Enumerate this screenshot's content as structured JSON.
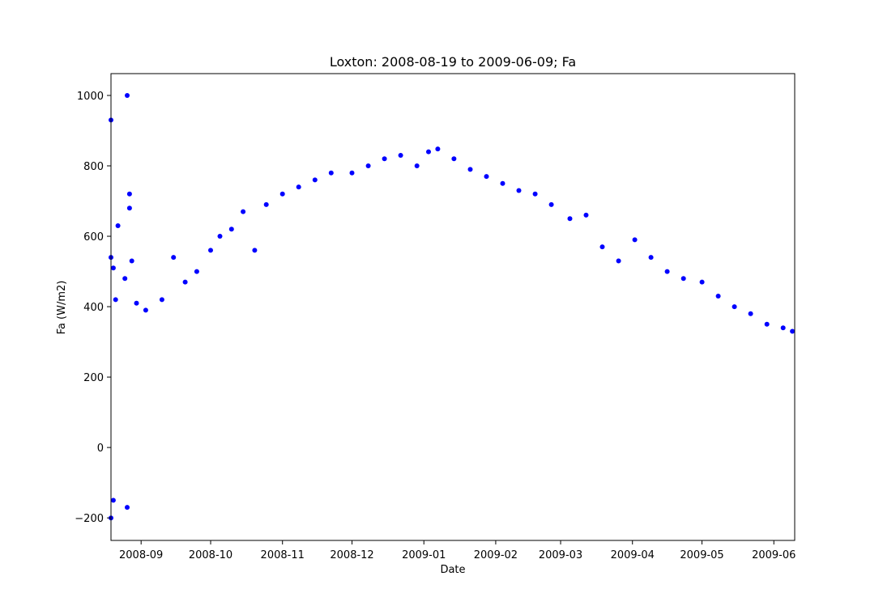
{
  "chart_data": {
    "type": "scatter",
    "title": "Loxton: 2008-08-19 to 2009-06-09; Fa",
    "xlabel": "Date",
    "ylabel": "Fa (W/m2)",
    "x_range": [
      "2008-08-19",
      "2009-06-09"
    ],
    "x_ticks": [
      "2008-09",
      "2008-10",
      "2008-11",
      "2008-12",
      "2009-01",
      "2009-02",
      "2009-03",
      "2009-04",
      "2009-05",
      "2009-06"
    ],
    "ylim": [
      -264,
      1062
    ],
    "y_ticks": [
      -200,
      0,
      200,
      400,
      600,
      800,
      1000
    ],
    "y_tick_labels": [
      "−200",
      "0",
      "200",
      "400",
      "600",
      "800",
      "1000"
    ],
    "grid": false,
    "marker_color": "#0000ff",
    "series": [
      {
        "x": [
          "2008-08-19",
          "2008-08-19",
          "2008-08-19",
          "2008-08-20",
          "2008-08-20",
          "2008-08-21",
          "2008-08-22",
          "2008-08-25",
          "2008-08-26",
          "2008-08-26",
          "2008-08-27",
          "2008-08-27",
          "2008-08-28",
          "2008-08-30",
          "2008-09-03",
          "2008-09-10",
          "2008-09-15",
          "2008-09-20",
          "2008-09-25",
          "2008-10-01",
          "2008-10-05",
          "2008-10-10",
          "2008-10-15",
          "2008-10-20",
          "2008-10-25",
          "2008-11-01",
          "2008-11-08",
          "2008-11-15",
          "2008-11-22",
          "2008-12-01",
          "2008-12-08",
          "2008-12-15",
          "2008-12-22",
          "2008-12-29",
          "2009-01-03",
          "2009-01-07",
          "2009-01-14",
          "2009-01-21",
          "2009-01-28",
          "2009-02-04",
          "2009-02-11",
          "2009-02-18",
          "2009-02-25",
          "2009-03-05",
          "2009-03-12",
          "2009-03-19",
          "2009-03-26",
          "2009-04-02",
          "2009-04-09",
          "2009-04-16",
          "2009-04-23",
          "2009-05-01",
          "2009-05-08",
          "2009-05-15",
          "2009-05-22",
          "2009-05-29",
          "2009-06-05",
          "2009-06-09"
        ],
        "y": [
          930,
          -200,
          540,
          510,
          -150,
          420,
          630,
          480,
          -170,
          1000,
          720,
          680,
          530,
          410,
          390,
          420,
          540,
          470,
          500,
          560,
          600,
          620,
          670,
          560,
          690,
          720,
          740,
          760,
          780,
          780,
          800,
          820,
          830,
          800,
          840,
          848,
          820,
          790,
          770,
          750,
          730,
          720,
          690,
          650,
          660,
          570,
          530,
          590,
          540,
          500,
          480,
          470,
          430,
          400,
          380,
          350,
          340,
          330
        ]
      }
    ]
  }
}
